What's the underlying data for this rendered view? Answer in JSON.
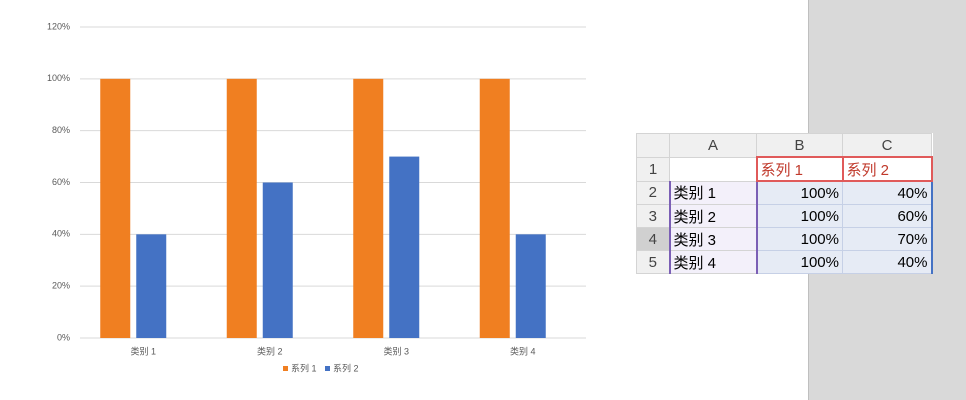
{
  "chart_data": {
    "type": "bar",
    "categories": [
      "类别 1",
      "类别 2",
      "类别 3",
      "类别 4"
    ],
    "series": [
      {
        "name": "系列 1",
        "color": "#f07f21",
        "values": [
          100,
          100,
          100,
          100
        ]
      },
      {
        "name": "系列 2",
        "color": "#4472c4",
        "values": [
          40,
          60,
          70,
          40
        ]
      }
    ],
    "ylim": [
      0,
      120
    ],
    "yticks": [
      {
        "value": 0,
        "label": "0%"
      },
      {
        "value": 20,
        "label": "20%"
      },
      {
        "value": 40,
        "label": "40%"
      },
      {
        "value": 60,
        "label": "60%"
      },
      {
        "value": 80,
        "label": "80%"
      },
      {
        "value": 100,
        "label": "100%"
      },
      {
        "value": 120,
        "label": "120%"
      }
    ],
    "grid": true,
    "legend": "bottom"
  },
  "table": {
    "columns": [
      "A",
      "B",
      "C"
    ],
    "row_numbers": [
      1,
      2,
      3,
      4,
      5
    ],
    "header": [
      "系列 1",
      "系列 2"
    ],
    "rows": [
      [
        "类别 1",
        "100%",
        "40%"
      ],
      [
        "类别 2",
        "100%",
        "60%"
      ],
      [
        "类别 3",
        "100%",
        "70%"
      ],
      [
        "类别 4",
        "100%",
        "40%"
      ]
    ]
  }
}
